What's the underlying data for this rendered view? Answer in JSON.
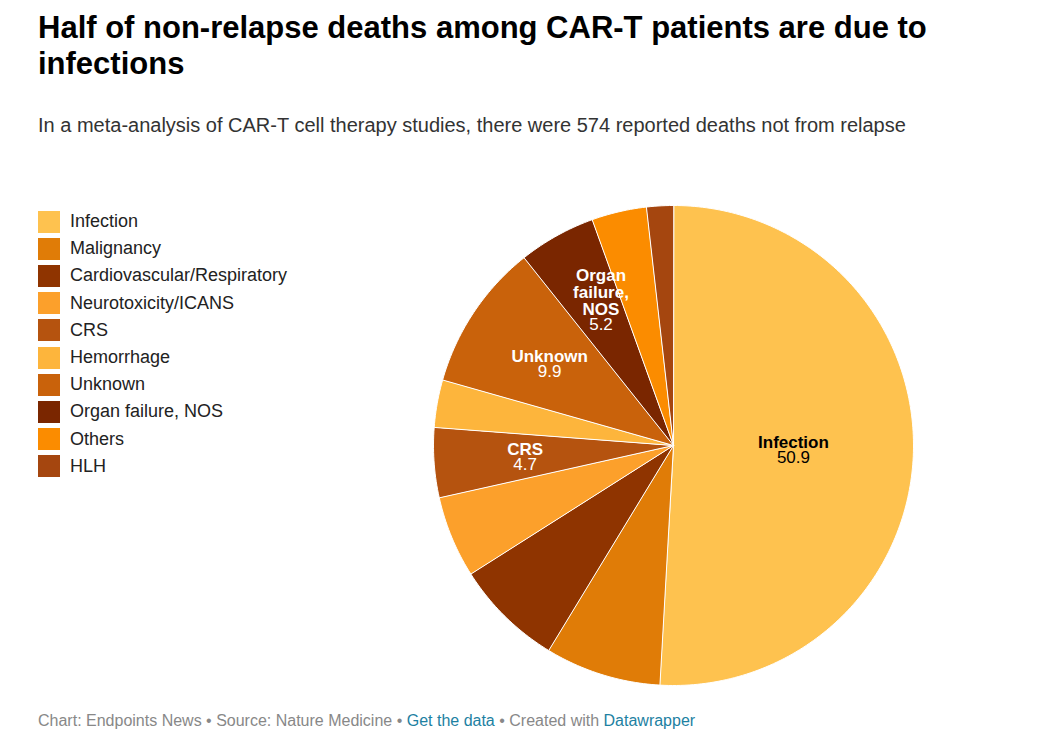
{
  "chart_data": {
    "type": "pie",
    "title": "Half of non-relapse deaths among CAR-T patients are due to infections",
    "subtitle": "In a meta-analysis of CAR-T cell therapy studies, there were 574 reported deaths not from relapse",
    "categories": [
      "Infection",
      "Malignancy",
      "Cardiovascular/Respiratory",
      "Neurotoxicity/ICANS",
      "CRS",
      "Hemorrhage",
      "Unknown",
      "Organ failure, NOS",
      "Others",
      "HLH"
    ],
    "values": [
      50.9,
      7.8,
      7.3,
      5.5,
      4.7,
      3.2,
      9.9,
      5.2,
      3.7,
      1.8
    ],
    "colors": [
      "#fec24f",
      "#e07c07",
      "#8f3400",
      "#fca02b",
      "#b5530f",
      "#fdb53c",
      "#c9620b",
      "#7a2600",
      "#fb8c00",
      "#a5460f"
    ],
    "value_labels": [
      "50.9",
      null,
      null,
      null,
      "4.7",
      null,
      "9.9",
      "5.2",
      null,
      null
    ],
    "data_labels": true,
    "legend": "left",
    "caption": "Chart: Endpoints News • Source: Nature Medicine • Get the data • Created with Datawrapper",
    "caption_links": [
      "Get the data",
      "Datawrapper"
    ]
  }
}
